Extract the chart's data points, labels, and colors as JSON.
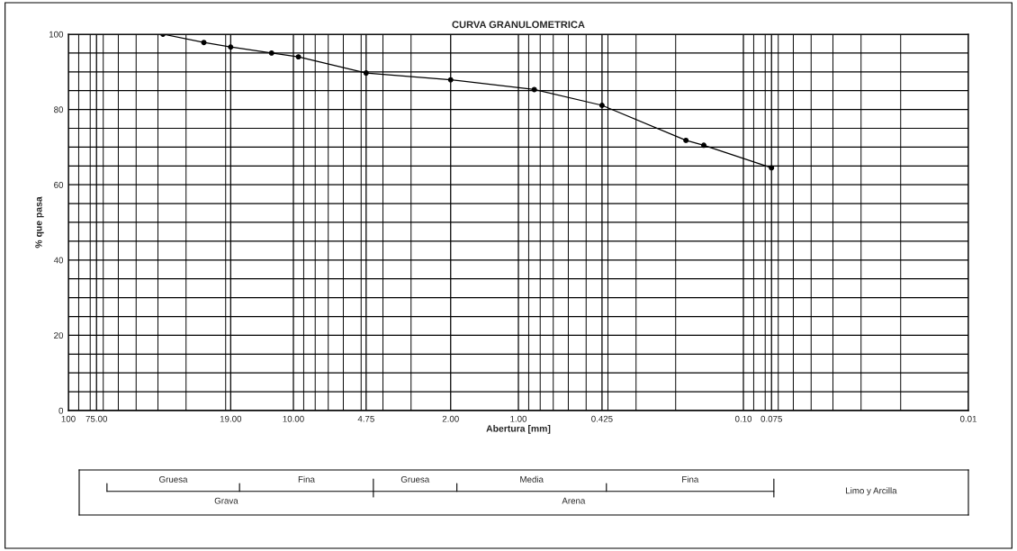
{
  "chart_data": {
    "type": "line",
    "title": "CURVA GRANULOMETRICA",
    "xlabel": "Abertura [mm]",
    "ylabel": "% que pasa",
    "x": [
      38.0,
      25.0,
      19.0,
      12.5,
      9.5,
      4.75,
      2.0,
      0.85,
      0.425,
      0.18,
      0.15,
      0.075
    ],
    "series": [
      {
        "color": "#000000",
        "values": [
          100,
          97.8,
          96.6,
          95.0,
          94.0,
          89.7,
          87.9,
          85.3,
          81.1,
          71.8,
          70.5,
          64.5
        ]
      }
    ],
    "log": "x",
    "xlim": [
      100,
      0.01
    ],
    "xticks": [
      100,
      {
        "value": 75,
        "label": "75.00"
      },
      {
        "value": 19,
        "label": "19.00"
      },
      {
        "value": 10,
        "label": "10.00"
      },
      4.75,
      {
        "value": 2,
        "label": "2.00"
      },
      {
        "value": 1,
        "label": "1.00"
      },
      0.425,
      {
        "value": 0.1,
        "label": "0.10"
      },
      0.075,
      0.01
    ],
    "ylim": [
      0,
      100
    ],
    "yticks": [
      0,
      {
        "value": 5,
        "label": null
      },
      {
        "value": 10,
        "label": null
      },
      {
        "value": 15,
        "label": null
      },
      20,
      {
        "value": 25,
        "label": null
      },
      {
        "value": 30,
        "label": null
      },
      {
        "value": 35,
        "label": null
      },
      40,
      {
        "value": 45,
        "label": null
      },
      {
        "value": 50,
        "label": null
      },
      {
        "value": 55,
        "label": null
      },
      60,
      {
        "value": 65,
        "label": null
      },
      {
        "value": 70,
        "label": null
      },
      {
        "value": 75,
        "label": null
      },
      80,
      {
        "value": 85,
        "label": null
      },
      {
        "value": 90,
        "label": null
      },
      {
        "value": 95,
        "label": null
      },
      100
    ],
    "grid": true,
    "marker": "circle",
    "line_style": "solid",
    "legend": false,
    "annotations": [
      "Gruesa",
      "Fina",
      "Gruesa",
      "Media",
      "Fina",
      "Grava",
      "Arena",
      "Limo y Arcilla"
    ]
  }
}
